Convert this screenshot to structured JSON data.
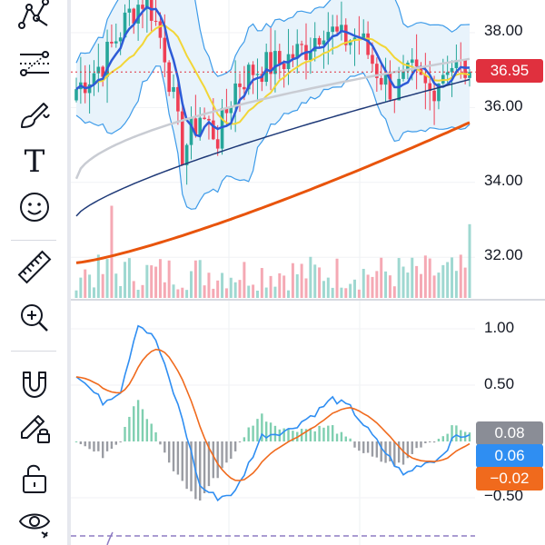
{
  "toolbar": {
    "tools": [
      {
        "name": "pattern-tool",
        "icon": "pattern-icon"
      },
      {
        "name": "fib-tool",
        "icon": "fib-retracement-icon"
      },
      {
        "name": "brush-tool",
        "icon": "brush-icon"
      },
      {
        "name": "text-tool",
        "icon": "text-icon"
      },
      {
        "name": "emoji-tool",
        "icon": "emoji-icon"
      },
      {
        "name": "ruler-tool",
        "icon": "ruler-icon"
      },
      {
        "name": "zoom-tool",
        "icon": "zoom-in-icon"
      },
      {
        "name": "magnet-tool",
        "icon": "magnet-icon"
      },
      {
        "name": "lock-drawing-tool",
        "icon": "pencil-lock-icon"
      },
      {
        "name": "lock-all-tool",
        "icon": "lock-open-icon"
      },
      {
        "name": "visibility-tool",
        "icon": "eye-icon"
      }
    ],
    "text_tool_glyph": "T"
  },
  "price_axis": {
    "labels": [
      "38.00",
      "36.00",
      "34.00",
      "32.00"
    ],
    "current_price": "36.95",
    "current_price_color": "#e0303e"
  },
  "indicator_axis": {
    "labels": [
      "1.00",
      "0.50",
      "−0.50"
    ],
    "histogram_value": "0.08",
    "histogram_color": "#8a8d96",
    "macd_value": "0.06",
    "macd_color": "#2f8ef2",
    "signal_value": "−0.02",
    "signal_color": "#f06a1d"
  },
  "colors": {
    "up": "#26a69a",
    "down": "#ef3f55",
    "ma_blue": "#2d5bd7",
    "ma_yellow": "#f2d637",
    "ma_navy": "#1f3a78",
    "ma_orange": "#e8540c",
    "ma_gray": "#c9ccd3",
    "bb_band": "#3d9be9",
    "bb_fill": "#e8f3fb"
  },
  "chart_data": {
    "type": "candlestick",
    "price_axis_ticks": [
      32.0,
      34.0,
      36.0,
      38.0
    ],
    "price_range": [
      31.0,
      38.8
    ],
    "last_price": 36.95,
    "macd_axis_ticks": [
      -0.5,
      0.5,
      1.0
    ],
    "macd_range": [
      -0.75,
      1.25
    ],
    "macd_last": {
      "histogram": 0.08,
      "macd": 0.06,
      "signal": -0.02
    }
  }
}
